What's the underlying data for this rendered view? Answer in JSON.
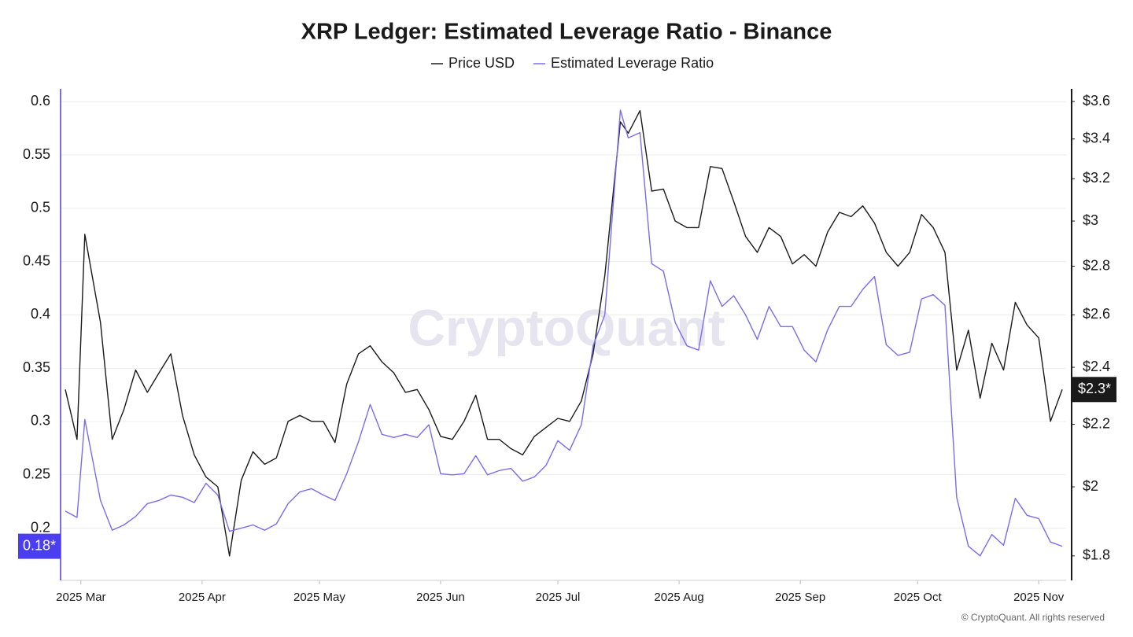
{
  "chart_data": {
    "type": "line",
    "title": "XRP Ledger: Estimated Leverage Ratio - Binance",
    "watermark": "CryptoQuant",
    "footer": "© CryptoQuant. All rights reserved",
    "legend": "top",
    "grid": true,
    "x": [
      "2025-02-25",
      "2025-02-28",
      "2025-03-02",
      "2025-03-06",
      "2025-03-09",
      "2025-03-12",
      "2025-03-15",
      "2025-03-18",
      "2025-03-21",
      "2025-03-24",
      "2025-03-27",
      "2025-03-30",
      "2025-04-02",
      "2025-04-05",
      "2025-04-08",
      "2025-04-11",
      "2025-04-14",
      "2025-04-17",
      "2025-04-20",
      "2025-04-23",
      "2025-04-26",
      "2025-04-29",
      "2025-05-02",
      "2025-05-05",
      "2025-05-08",
      "2025-05-11",
      "2025-05-14",
      "2025-05-17",
      "2025-05-20",
      "2025-05-23",
      "2025-05-26",
      "2025-05-29",
      "2025-06-01",
      "2025-06-04",
      "2025-06-07",
      "2025-06-10",
      "2025-06-13",
      "2025-06-16",
      "2025-06-19",
      "2025-06-22",
      "2025-06-25",
      "2025-06-28",
      "2025-07-01",
      "2025-07-04",
      "2025-07-07",
      "2025-07-10",
      "2025-07-13",
      "2025-07-17",
      "2025-07-19",
      "2025-07-22",
      "2025-07-25",
      "2025-07-28",
      "2025-07-31",
      "2025-08-03",
      "2025-08-06",
      "2025-08-09",
      "2025-08-12",
      "2025-08-15",
      "2025-08-18",
      "2025-08-21",
      "2025-08-24",
      "2025-08-27",
      "2025-08-30",
      "2025-09-02",
      "2025-09-05",
      "2025-09-08",
      "2025-09-11",
      "2025-09-14",
      "2025-09-17",
      "2025-09-20",
      "2025-09-23",
      "2025-09-26",
      "2025-09-29",
      "2025-10-02",
      "2025-10-05",
      "2025-10-08",
      "2025-10-11",
      "2025-10-14",
      "2025-10-17",
      "2025-10-20",
      "2025-10-23",
      "2025-10-26",
      "2025-10-29",
      "2025-11-01",
      "2025-11-04",
      "2025-11-07"
    ],
    "xlim": [
      "2025-02-24",
      "2025-11-08"
    ],
    "xticks": [
      {
        "value": "2025-03-01",
        "label": "2025 Mar"
      },
      {
        "value": "2025-04-01",
        "label": "2025 Apr"
      },
      {
        "value": "2025-05-01",
        "label": "2025 May"
      },
      {
        "value": "2025-06-01",
        "label": "2025 Jun"
      },
      {
        "value": "2025-07-01",
        "label": "2025 Jul"
      },
      {
        "value": "2025-08-01",
        "label": "2025 Aug"
      },
      {
        "value": "2025-09-01",
        "label": "2025 Sep"
      },
      {
        "value": "2025-10-01",
        "label": "2025 Oct"
      },
      {
        "value": "2025-11-01",
        "label": "2025 Nov"
      }
    ],
    "ylim": [
      0.151,
      0.612
    ],
    "yticks": [
      0.2,
      0.25,
      0.3,
      0.35,
      0.4,
      0.45,
      0.5,
      0.55,
      0.6
    ],
    "y2lim": [
      1.734,
      3.67
    ],
    "y2scale": "log",
    "y2ticks": [
      {
        "value": 1.8,
        "label": "$1.8"
      },
      {
        "value": 2,
        "label": "$2"
      },
      {
        "value": 2.2,
        "label": "$2.2"
      },
      {
        "value": 2.4,
        "label": "$2.4"
      },
      {
        "value": 2.6,
        "label": "$2.6"
      },
      {
        "value": 2.8,
        "label": "$2.8"
      },
      {
        "value": 3,
        "label": "$3"
      },
      {
        "value": 3.2,
        "label": "$3.2"
      },
      {
        "value": 3.4,
        "label": "$3.4"
      },
      {
        "value": 3.6,
        "label": "$3.6"
      }
    ],
    "series": [
      {
        "name": "Price USD",
        "color": "#1a1a1a",
        "axis": "y2",
        "end_label": "$2.3*",
        "values": [
          2.32,
          2.15,
          2.94,
          2.57,
          2.15,
          2.25,
          2.39,
          2.31,
          2.38,
          2.45,
          2.23,
          2.1,
          2.03,
          2.0,
          1.8,
          2.02,
          2.11,
          2.07,
          2.09,
          2.21,
          2.23,
          2.21,
          2.21,
          2.14,
          2.34,
          2.45,
          2.48,
          2.42,
          2.38,
          2.31,
          2.32,
          2.25,
          2.16,
          2.15,
          2.21,
          2.3,
          2.15,
          2.15,
          2.12,
          2.1,
          2.16,
          2.19,
          2.22,
          2.21,
          2.28,
          2.45,
          2.76,
          3.49,
          3.43,
          3.55,
          3.14,
          3.15,
          3.0,
          2.97,
          2.97,
          3.26,
          3.25,
          3.09,
          2.93,
          2.86,
          2.97,
          2.93,
          2.81,
          2.85,
          2.8,
          2.95,
          3.04,
          3.02,
          3.07,
          2.99,
          2.86,
          2.8,
          2.86,
          3.03,
          2.97,
          2.86,
          2.39,
          2.54,
          2.29,
          2.49,
          2.39,
          2.65,
          2.56,
          2.51,
          2.21,
          2.32
        ]
      },
      {
        "name": "Estimated Leverage Ratio",
        "color": "#7a6cf0",
        "axis": "y",
        "end_label": "0.18*",
        "end_label_color": "#4b3df0",
        "values": [
          0.216,
          0.21,
          0.302,
          0.226,
          0.198,
          0.203,
          0.211,
          0.223,
          0.226,
          0.231,
          0.229,
          0.224,
          0.242,
          0.231,
          0.197,
          0.2,
          0.203,
          0.198,
          0.204,
          0.223,
          0.234,
          0.237,
          0.231,
          0.226,
          0.251,
          0.281,
          0.316,
          0.288,
          0.285,
          0.288,
          0.285,
          0.297,
          0.251,
          0.25,
          0.251,
          0.268,
          0.25,
          0.254,
          0.256,
          0.244,
          0.248,
          0.259,
          0.282,
          0.273,
          0.297,
          0.371,
          0.4,
          0.592,
          0.566,
          0.571,
          0.448,
          0.441,
          0.393,
          0.371,
          0.367,
          0.432,
          0.408,
          0.418,
          0.4,
          0.377,
          0.408,
          0.389,
          0.389,
          0.367,
          0.356,
          0.386,
          0.408,
          0.408,
          0.424,
          0.436,
          0.372,
          0.362,
          0.365,
          0.415,
          0.419,
          0.409,
          0.229,
          0.183,
          0.174,
          0.194,
          0.184,
          0.228,
          0.212,
          0.209,
          0.187,
          0.183
        ]
      }
    ]
  }
}
